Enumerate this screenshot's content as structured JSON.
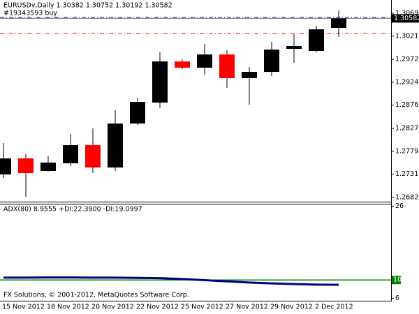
{
  "chart_data": [
    {
      "type": "candlestick",
      "title": "EURUSDv,Daily  1.30382 1.30752 1.30192 1.30582",
      "annotation": "#19343593 buy",
      "categories": [
        "15 Nov 2012",
        null,
        "18 Nov 2012",
        null,
        "20 Nov 2012",
        null,
        "22 Nov 2012",
        null,
        "25 Nov 2012",
        null,
        "27 Nov 2012",
        null,
        "29 Nov 2012",
        null,
        "2 Dec 2012",
        null
      ],
      "open": [
        1.27304,
        1.27641,
        1.27377,
        1.27538,
        1.27919,
        1.2745,
        1.28374,
        1.28814,
        1.29678,
        1.29547,
        1.29825,
        1.29327,
        1.29459,
        1.29942,
        1.29898,
        1.30382
      ],
      "high": [
        1.27963,
        1.27729,
        1.27685,
        1.28154,
        1.28271,
        1.28652,
        1.28916,
        1.29869,
        1.29722,
        1.30045,
        1.29913,
        1.29561,
        1.30089,
        1.3025,
        1.30426,
        1.30752
      ],
      "low": [
        1.2723,
        1.26834,
        1.27362,
        1.27479,
        1.27333,
        1.27377,
        1.28344,
        1.28696,
        1.29517,
        1.294,
        1.29121,
        1.2877,
        1.29371,
        1.29649,
        1.29869,
        1.30192
      ],
      "close": [
        1.27641,
        1.27333,
        1.27553,
        1.27919,
        1.2745,
        1.28374,
        1.28828,
        1.29678,
        1.29547,
        1.29825,
        1.29327,
        1.29459,
        1.29928,
        1.30001,
        1.30353,
        1.30582
      ],
      "up_color": "#000000",
      "down_color": "#ff0000",
      "ylim": [
        1.26747,
        1.30969
      ],
      "yticks": [
        {
          "value": 1.3069,
          "label": "1.30690"
        },
        {
          "value": 1.3021,
          "label": "1.30210"
        },
        {
          "value": 1.2972,
          "label": "1.29720"
        },
        {
          "value": 1.2924,
          "label": "1.29240"
        },
        {
          "value": 1.2876,
          "label": "1.28760"
        },
        {
          "value": 1.2827,
          "label": "1.28270"
        },
        {
          "value": 1.2779,
          "label": "1.27790"
        },
        {
          "value": 1.2731,
          "label": "1.27310"
        },
        {
          "value": 1.2682,
          "label": "1.26820"
        }
      ],
      "order_level": 1.30265,
      "order_color": "#ff0000",
      "ask_level": 1.30602,
      "ask_color": "#000080"
    },
    {
      "type": "line",
      "title": "ADX(80) 8.9555 +DI:22.3900 -DI:19.0997",
      "values": [
        10.5,
        10.5,
        10.55,
        10.55,
        10.5,
        10.5,
        10.45,
        10.4,
        10.2,
        9.95,
        9.7,
        9.45,
        9.25,
        9.1,
        9.0,
        8.9555
      ],
      "color": "#000080",
      "ylim": [
        5.5,
        26.5
      ],
      "yticks": [
        26,
        6
      ],
      "level": 10,
      "level_color": "#008000"
    }
  ],
  "footer": "FX Solutions, © 2001-2012, MetaQuotes Software Corp."
}
